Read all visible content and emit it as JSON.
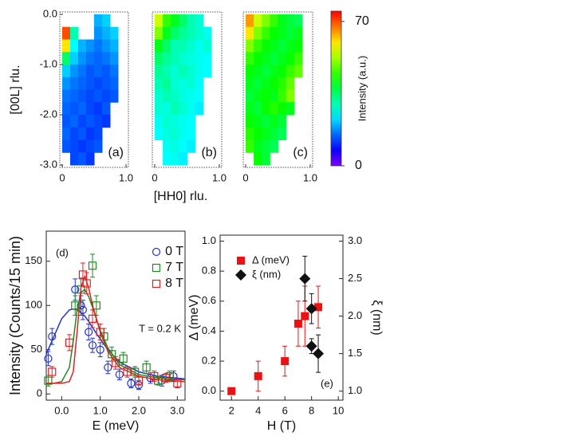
{
  "chart_data": [
    {
      "type": "heatmap",
      "panel_label": "(a)",
      "ylabel": "[00L] rlu.",
      "xlim": [
        0,
        1
      ],
      "ylim": [
        -3,
        0
      ],
      "xticks": [
        0,
        {
          "value": 1,
          "label": "1.0"
        }
      ],
      "yticks": [
        {
          "value": 0,
          "label": "0.0"
        },
        {
          "value": -1,
          "label": "-1.0"
        },
        {
          "value": -2,
          "label": "-2.0"
        },
        {
          "value": -3,
          "label": "-3.0"
        }
      ],
      "rows": [
        [
          null,
          null,
          null,
          null,
          20,
          22,
          null,
          null
        ],
        [
          70,
          30,
          null,
          null,
          18,
          20,
          22,
          null
        ],
        [
          60,
          25,
          20,
          18,
          16,
          18,
          20,
          null
        ],
        [
          35,
          22,
          18,
          16,
          15,
          16,
          18,
          null
        ],
        [
          22,
          18,
          16,
          14,
          15,
          14,
          16,
          null
        ],
        [
          18,
          16,
          15,
          14,
          13,
          14,
          15,
          null
        ],
        [
          16,
          15,
          14,
          13,
          14,
          13,
          14,
          null
        ],
        [
          15,
          14,
          15,
          13,
          12,
          14,
          null,
          null
        ],
        [
          14,
          15,
          13,
          14,
          13,
          12,
          null,
          null
        ],
        [
          15,
          13,
          14,
          12,
          13,
          null,
          null,
          null
        ],
        [
          14,
          13,
          12,
          13,
          14,
          null,
          null,
          null
        ],
        [
          null,
          13,
          14,
          12,
          null,
          null,
          null,
          null
        ]
      ]
    },
    {
      "type": "heatmap",
      "panel_label": "(b)",
      "xlabel": "[HH0] rlu.",
      "xlim": [
        0,
        1
      ],
      "ylim": [
        -3,
        0
      ],
      "xticks": [
        0,
        {
          "value": 1,
          "label": "1.0"
        }
      ],
      "rows": [
        [
          55,
          45,
          40,
          35,
          30,
          28,
          null,
          null
        ],
        [
          50,
          40,
          35,
          32,
          30,
          28,
          26,
          null
        ],
        [
          40,
          35,
          30,
          30,
          28,
          26,
          28,
          null
        ],
        [
          35,
          32,
          30,
          28,
          27,
          26,
          25,
          null
        ],
        [
          32,
          30,
          28,
          30,
          28,
          26,
          25,
          null
        ],
        [
          30,
          32,
          28,
          27,
          28,
          25,
          null,
          null
        ],
        [
          28,
          30,
          29,
          27,
          26,
          25,
          null,
          null
        ],
        [
          28,
          27,
          30,
          28,
          26,
          24,
          null,
          null
        ],
        [
          26,
          28,
          27,
          26,
          25,
          null,
          null,
          null
        ],
        [
          25,
          27,
          28,
          26,
          25,
          null,
          null,
          null
        ],
        [
          null,
          26,
          27,
          25,
          24,
          null,
          null,
          null
        ],
        [
          null,
          25,
          26,
          24,
          null,
          null,
          null,
          null
        ]
      ]
    },
    {
      "type": "heatmap",
      "panel_label": "(c)",
      "xlim": [
        0,
        1
      ],
      "ylim": [
        -3,
        0
      ],
      "xticks": [
        0,
        {
          "value": 1,
          "label": "1.0"
        }
      ],
      "colorbar": {
        "label": "Intensity (a.u.)",
        "colorscale": "rainbow",
        "lim": [
          0,
          75
        ],
        "ticks": [
          0,
          70
        ]
      },
      "rows": [
        [
          65,
          55,
          50,
          45,
          40,
          38,
          36,
          null
        ],
        [
          60,
          50,
          45,
          42,
          40,
          38,
          40,
          null
        ],
        [
          50,
          45,
          42,
          40,
          38,
          40,
          42,
          null
        ],
        [
          45,
          42,
          40,
          38,
          40,
          42,
          45,
          null
        ],
        [
          42,
          40,
          38,
          40,
          42,
          45,
          48,
          null
        ],
        [
          40,
          38,
          40,
          42,
          44,
          48,
          null,
          null
        ],
        [
          38,
          40,
          42,
          40,
          45,
          50,
          null,
          null
        ],
        [
          40,
          38,
          42,
          44,
          42,
          40,
          null,
          null
        ],
        [
          42,
          40,
          38,
          40,
          38,
          null,
          null,
          null
        ],
        [
          44,
          42,
          40,
          38,
          36,
          null,
          null,
          null
        ],
        [
          45,
          40,
          38,
          36,
          null,
          null,
          null,
          null
        ],
        [
          null,
          42,
          38,
          null,
          null,
          null,
          null,
          null
        ]
      ]
    },
    {
      "type": "scatter",
      "panel_label": "(d)",
      "annotation": "T = 0.2 K",
      "xlabel": "E (meV)",
      "ylabel": "Intensity (Counts/15 min)",
      "xlim": [
        -0.4,
        3.2
      ],
      "ylim": [
        -7,
        184
      ],
      "xticks": [
        {
          "value": 0,
          "label": "0.0"
        },
        {
          "value": 1,
          "label": "1.0"
        },
        {
          "value": 2,
          "label": "2.0"
        },
        {
          "value": 3,
          "label": "3.0"
        }
      ],
      "yticks": [
        0,
        50,
        100,
        150
      ],
      "fit_x": [
        -0.4,
        -0.2,
        0,
        0.2,
        0.3,
        0.4,
        0.5,
        0.6,
        0.7,
        0.8,
        1.0,
        1.2,
        1.5,
        2.0,
        2.5,
        3.2
      ],
      "series": [
        {
          "name": "0 T",
          "color": "#2233cc",
          "marker": "circle",
          "x": [
            -0.35,
            -0.25,
            0.35,
            0.5,
            0.55,
            0.7,
            0.8,
            1.0,
            1.2,
            1.5,
            1.8,
            2.0,
            2.3,
            2.6,
            2.9
          ],
          "values": [
            40,
            65,
            118,
            100,
            95,
            70,
            55,
            50,
            30,
            22,
            12,
            10,
            18,
            15,
            20
          ],
          "errors": [
            8,
            9,
            12,
            11,
            11,
            9,
            8,
            8,
            7,
            6,
            5,
            5,
            6,
            6,
            6
          ],
          "fit_values": [
            45,
            65,
            85,
            95,
            96,
            95,
            92,
            88,
            82,
            75,
            62,
            50,
            36,
            25,
            20,
            17
          ]
        },
        {
          "name": "7 T",
          "color": "#228822",
          "marker": "square",
          "x": [
            -0.35,
            0.35,
            0.5,
            0.8,
            0.9,
            1.1,
            1.3,
            1.6,
            1.9,
            2.2,
            2.5,
            2.8
          ],
          "values": [
            15,
            100,
            118,
            145,
            100,
            65,
            45,
            40,
            25,
            30,
            15,
            20
          ],
          "errors": [
            6,
            11,
            12,
            13,
            11,
            9,
            8,
            7,
            6,
            7,
            5,
            6
          ],
          "fit_values": [
            12,
            12,
            14,
            30,
            60,
            95,
            115,
            118,
            110,
            98,
            72,
            52,
            33,
            22,
            18,
            16
          ]
        },
        {
          "name": "8 T",
          "color": "#e02222",
          "marker": "square",
          "x": [
            -0.25,
            0.2,
            0.55,
            0.65,
            0.8,
            1.0,
            1.4,
            1.7,
            2.0,
            2.4,
            2.7,
            3.0
          ],
          "values": [
            25,
            58,
            135,
            125,
            85,
            70,
            35,
            25,
            15,
            20,
            18,
            12
          ],
          "errors": [
            6,
            9,
            13,
            12,
            10,
            9,
            7,
            6,
            5,
            6,
            5,
            5
          ],
          "fit_values": [
            12,
            12,
            12,
            14,
            25,
            70,
            120,
            133,
            120,
            100,
            70,
            48,
            30,
            20,
            16,
            14
          ]
        }
      ]
    },
    {
      "type": "scatter",
      "panel_label": "(e)",
      "xlabel": "H (T)",
      "ylabel": "Δ (meV)",
      "y2label": "ξ (nm)",
      "xlim": [
        1.15,
        10.35
      ],
      "ylim": [
        -0.06,
        1.04
      ],
      "y2lim": [
        0.88,
        3.08
      ],
      "xticks": [
        2,
        4,
        6,
        8,
        10
      ],
      "yticks": [
        {
          "value": 0,
          "label": "0.0"
        },
        0.2,
        0.4,
        0.6,
        0.8,
        {
          "value": 1,
          "label": "1.0"
        }
      ],
      "y2ticks": [
        {
          "value": 1,
          "label": "1.0"
        },
        1.5,
        {
          "value": 2,
          "label": "2.0"
        },
        2.5,
        {
          "value": 3,
          "label": "3.0"
        }
      ],
      "series": [
        {
          "name": "Δ (meV)",
          "color": "#ee1111",
          "marker": "filled-square",
          "x": [
            2,
            4,
            6,
            7,
            7.5,
            8.5
          ],
          "values": [
            0,
            0.1,
            0.2,
            0.45,
            0.5,
            0.56
          ],
          "errors": [
            0,
            0.1,
            0.1,
            0.15,
            0.2,
            0.14
          ]
        },
        {
          "name": "ξ (nm)",
          "color": "#111111",
          "marker": "diamond",
          "axis": "y2",
          "x": [
            7.5,
            8,
            8,
            8.5
          ],
          "values": [
            2.5,
            2.1,
            1.6,
            1.5
          ],
          "errors": [
            0.3,
            0.2,
            0.1,
            0.25
          ]
        }
      ]
    }
  ]
}
